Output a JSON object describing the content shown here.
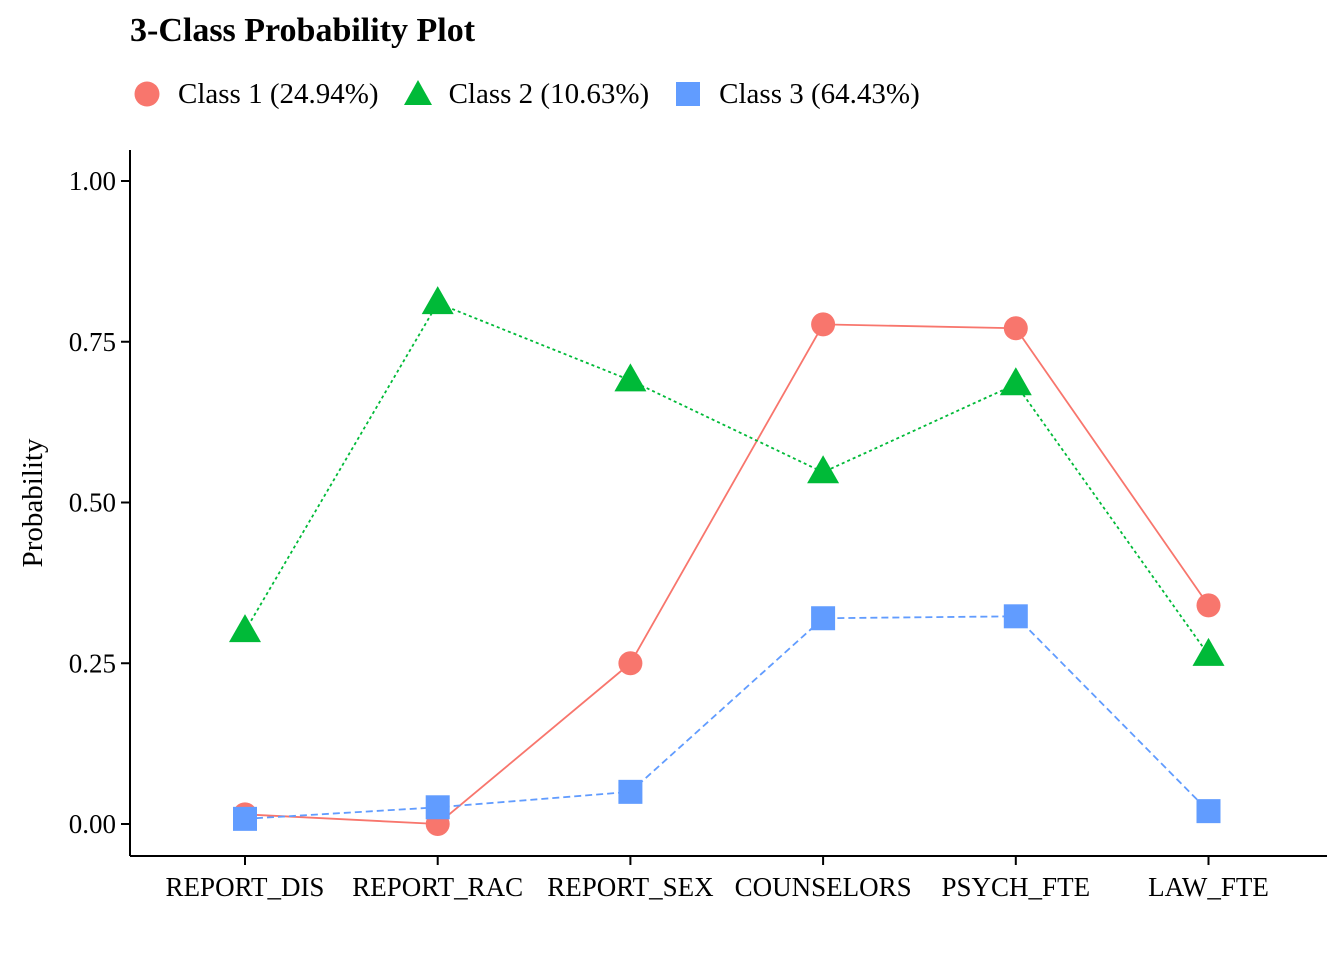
{
  "chart_data": {
    "type": "line",
    "title": "3-Class Probability Plot",
    "ylabel": "Probability",
    "xlabel": "",
    "categories": [
      "REPORT_DIS",
      "REPORT_RAC",
      "REPORT_SEX",
      "COUNSELORS",
      "PSYCH_FTE",
      "LAW_FTE"
    ],
    "ylim": [
      0,
      1.05
    ],
    "yticks": [
      0.0,
      0.25,
      0.5,
      0.75,
      1.0
    ],
    "ytick_labels": [
      "0.00",
      "0.25",
      "0.50",
      "0.75",
      "1.00"
    ],
    "legend_position": "top-left",
    "grid": false,
    "series": [
      {
        "name": "Class 1 (24.94%)",
        "marker": "circle",
        "line_style": "solid",
        "color": "#F8766D",
        "values": [
          0.015,
          0.0,
          0.25,
          0.777,
          0.771,
          0.34
        ]
      },
      {
        "name": "Class 2 (10.63%)",
        "marker": "triangle",
        "line_style": "dotted",
        "color": "#00BA38",
        "values": [
          0.3,
          0.81,
          0.69,
          0.547,
          0.684,
          0.263
        ]
      },
      {
        "name": "Class 3 (64.43%)",
        "marker": "square",
        "line_style": "dashed",
        "color": "#619CFF",
        "values": [
          0.008,
          0.026,
          0.05,
          0.32,
          0.323,
          0.02
        ]
      }
    ]
  }
}
